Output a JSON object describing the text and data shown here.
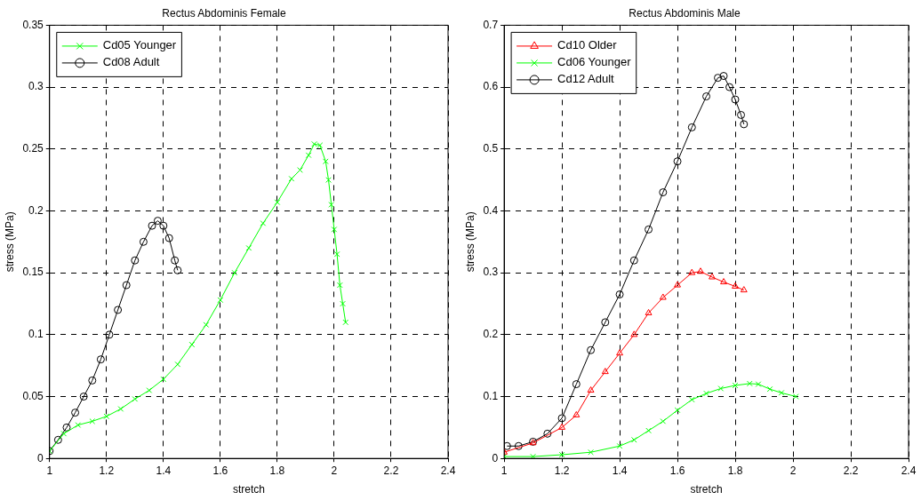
{
  "chart_data": [
    {
      "type": "line",
      "title": "Rectus Abdominis Female",
      "xlabel": "stretch",
      "ylabel": "stress (MPa)",
      "xlim": [
        1,
        2.4
      ],
      "xticks": [
        1,
        1.2,
        1.4,
        1.6,
        1.8,
        2,
        2.2,
        2.4
      ],
      "ylim": [
        0,
        0.35
      ],
      "yticks": [
        0,
        0.05,
        0.1,
        0.15,
        0.2,
        0.25,
        0.3,
        0.35
      ],
      "grid": true,
      "legend": "top left",
      "series": [
        {
          "name": "Cd05 Younger",
          "color": "#00ff00",
          "marker": "cross",
          "x": [
            1.0,
            1.05,
            1.1,
            1.15,
            1.2,
            1.25,
            1.3,
            1.35,
            1.4,
            1.45,
            1.5,
            1.55,
            1.6,
            1.65,
            1.7,
            1.75,
            1.8,
            1.85,
            1.88,
            1.91,
            1.93,
            1.95,
            1.97,
            1.98,
            1.99,
            2.0,
            2.01,
            2.02,
            2.03,
            2.04
          ],
          "values": [
            0.006,
            0.02,
            0.027,
            0.03,
            0.034,
            0.04,
            0.048,
            0.055,
            0.064,
            0.076,
            0.092,
            0.108,
            0.128,
            0.15,
            0.17,
            0.19,
            0.207,
            0.226,
            0.233,
            0.245,
            0.254,
            0.253,
            0.24,
            0.225,
            0.205,
            0.185,
            0.165,
            0.14,
            0.125,
            0.11
          ]
        },
        {
          "name": "Cd08 Adult",
          "color": "#000000",
          "marker": "circle",
          "x": [
            1.0,
            1.03,
            1.06,
            1.09,
            1.12,
            1.15,
            1.18,
            1.21,
            1.24,
            1.27,
            1.3,
            1.33,
            1.36,
            1.38,
            1.4,
            1.42,
            1.44,
            1.45
          ],
          "values": [
            0.006,
            0.015,
            0.025,
            0.037,
            0.05,
            0.063,
            0.08,
            0.1,
            0.12,
            0.14,
            0.16,
            0.175,
            0.188,
            0.192,
            0.188,
            0.178,
            0.16,
            0.152
          ]
        }
      ]
    },
    {
      "type": "line",
      "title": "Rectus Abdominis Male",
      "xlabel": "stretch",
      "ylabel": "stress (MPa)",
      "xlim": [
        1,
        2.4
      ],
      "xticks": [
        1,
        1.2,
        1.4,
        1.6,
        1.8,
        2,
        2.2,
        2.4
      ],
      "ylim": [
        0,
        0.7
      ],
      "yticks": [
        0,
        0.1,
        0.2,
        0.3,
        0.4,
        0.5,
        0.6,
        0.7
      ],
      "grid": true,
      "legend": "top left",
      "series": [
        {
          "name": "Cd10 Older",
          "color": "#ff0000",
          "marker": "triangle",
          "x": [
            1.0,
            1.1,
            1.2,
            1.25,
            1.3,
            1.35,
            1.4,
            1.45,
            1.5,
            1.55,
            1.6,
            1.65,
            1.68,
            1.72,
            1.76,
            1.8,
            1.83
          ],
          "values": [
            0.01,
            0.025,
            0.05,
            0.07,
            0.11,
            0.14,
            0.17,
            0.2,
            0.235,
            0.26,
            0.28,
            0.3,
            0.302,
            0.293,
            0.285,
            0.278,
            0.272
          ]
        },
        {
          "name": "Cd06 Younger",
          "color": "#00ff00",
          "marker": "cross",
          "x": [
            1.0,
            1.1,
            1.2,
            1.3,
            1.4,
            1.45,
            1.5,
            1.55,
            1.6,
            1.65,
            1.7,
            1.75,
            1.8,
            1.85,
            1.88,
            1.92,
            1.96,
            2.01
          ],
          "values": [
            0.003,
            0.003,
            0.006,
            0.01,
            0.02,
            0.03,
            0.045,
            0.06,
            0.078,
            0.095,
            0.105,
            0.113,
            0.118,
            0.121,
            0.12,
            0.112,
            0.106,
            0.1
          ]
        },
        {
          "name": "Cd12 Adult",
          "color": "#000000",
          "marker": "circle",
          "x": [
            1.01,
            1.05,
            1.1,
            1.15,
            1.2,
            1.25,
            1.3,
            1.35,
            1.4,
            1.45,
            1.5,
            1.55,
            1.6,
            1.65,
            1.7,
            1.74,
            1.76,
            1.78,
            1.8,
            1.82,
            1.83
          ],
          "values": [
            0.02,
            0.02,
            0.027,
            0.04,
            0.065,
            0.12,
            0.175,
            0.22,
            0.265,
            0.32,
            0.37,
            0.43,
            0.48,
            0.535,
            0.585,
            0.615,
            0.618,
            0.6,
            0.58,
            0.555,
            0.54
          ]
        }
      ]
    }
  ]
}
